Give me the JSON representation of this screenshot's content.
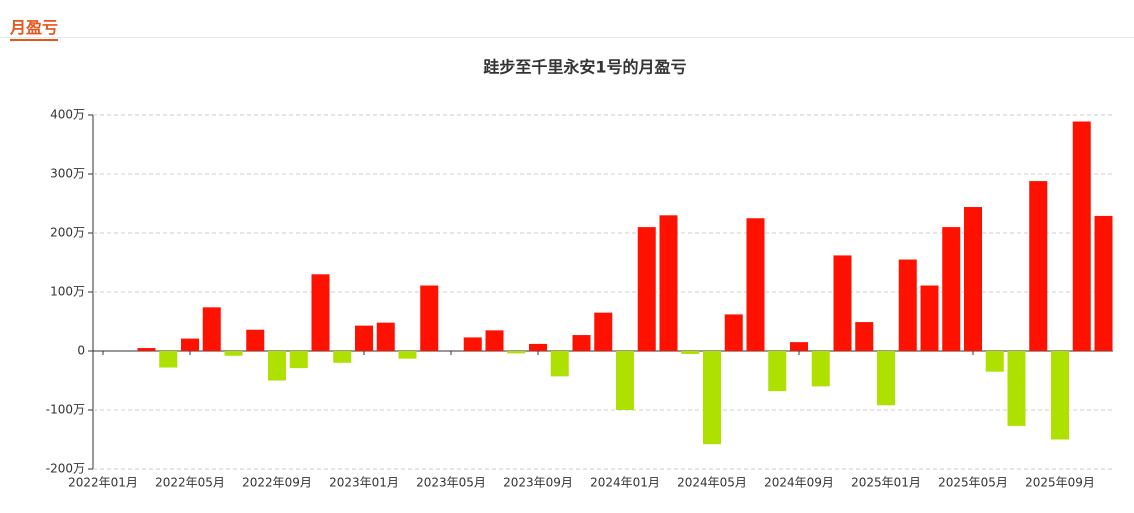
{
  "header": {
    "title": "月盈亏"
  },
  "chart_data": {
    "type": "bar",
    "title": "跬步至千里永安1号的月盈亏",
    "categories": [
      "2022年01月",
      null,
      null,
      null,
      "2022年05月",
      null,
      null,
      null,
      "2022年09月",
      null,
      null,
      null,
      "2023年01月",
      null,
      null,
      null,
      "2023年05月",
      null,
      null,
      null,
      "2023年09月",
      null,
      null,
      null,
      "2024年01月",
      null,
      null,
      null,
      "2024年05月",
      null,
      null,
      null,
      "2024年09月",
      null,
      null,
      null,
      "2025年01月",
      null,
      null,
      null,
      "2025年05月",
      null,
      null,
      null,
      "2025年09月",
      null,
      null
    ],
    "values": [
      0,
      0,
      5,
      -28,
      21,
      74,
      -8,
      36,
      -50,
      -29,
      130,
      -20,
      43,
      48,
      -13,
      111,
      0,
      23,
      35,
      -4,
      12,
      -43,
      27,
      65,
      -100,
      210,
      230,
      -5,
      -158,
      62,
      225,
      -68,
      15,
      -60,
      162,
      49,
      -92,
      155,
      111,
      210,
      244,
      -35,
      -127,
      288,
      -150,
      389,
      229
    ],
    "positive_color": "#ff1100",
    "negative_color": "#aee000",
    "ylim": [
      -200,
      400
    ],
    "yticks": [
      {
        "value": -200,
        "label": "-200万"
      },
      {
        "value": -100,
        "label": "-100万"
      },
      {
        "value": 0,
        "label": "0"
      },
      {
        "value": 100,
        "label": "100万"
      },
      {
        "value": 200,
        "label": "200万"
      },
      {
        "value": 300,
        "label": "300万"
      },
      {
        "value": 400,
        "label": "400万"
      }
    ],
    "grid": true
  }
}
